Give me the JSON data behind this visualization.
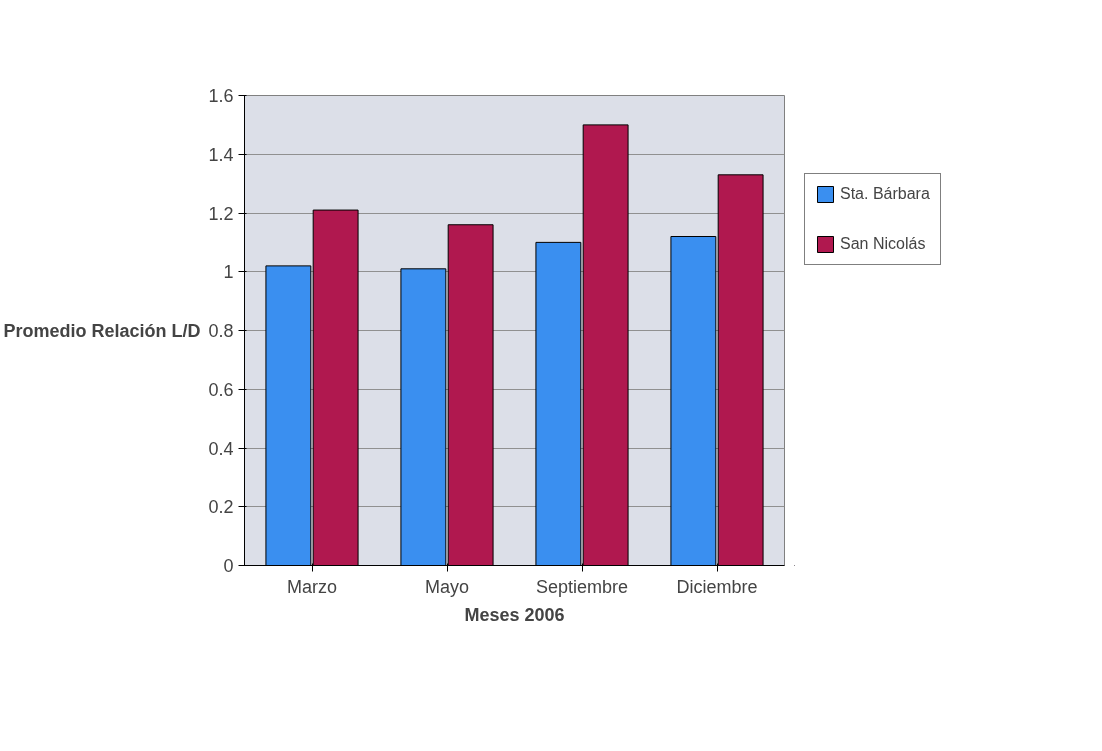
{
  "chart_data": {
    "type": "bar",
    "xlabel": "Meses 2006",
    "ylabel": "Promedio Relación L/D",
    "categories": [
      "Marzo",
      "Mayo",
      "Septiembre",
      "Diciembre"
    ],
    "series": [
      {
        "name": "Sta. Bárbara",
        "color": "#3a8ff0",
        "values": [
          1.02,
          1.01,
          1.1,
          1.12
        ]
      },
      {
        "name": "San Nicolás",
        "color": "#b0184f",
        "values": [
          1.21,
          1.16,
          1.5,
          1.33
        ]
      }
    ],
    "ylim": [
      0,
      1.6
    ],
    "yticks": [
      0,
      0.2,
      0.4,
      0.6,
      0.8,
      1,
      1.2,
      1.4,
      1.6
    ],
    "grid": "y",
    "legend": "right"
  }
}
